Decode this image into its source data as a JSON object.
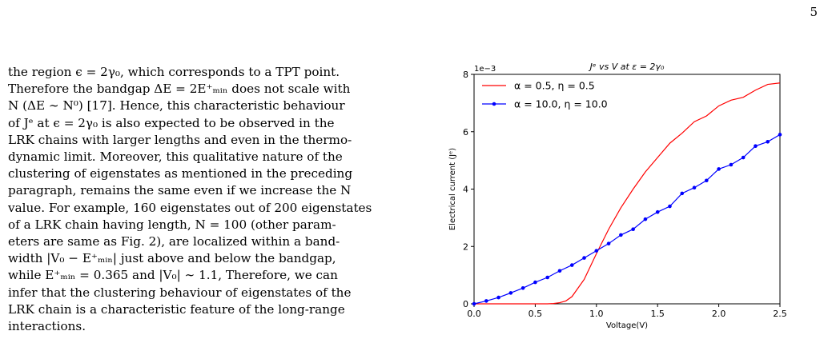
{
  "page_number": "5",
  "paragraph": [
    "the region ϵ = 2γ₀, which corresponds to a TPT point.",
    "Therefore the bandgap ΔE = 2E⁺ₘᵢₙ does not scale with",
    "N (ΔE ∼ N⁰) [17]. Hence, this characteristic behaviour",
    "of Jᵉ at ϵ = 2γ₀ is also expected to be observed in the",
    "LRK chains with larger lengths and even in the thermo-",
    "dynamic limit. Moreover, this qualitative nature of the",
    "clustering of eigenstates as mentioned in the preceding",
    "paragraph, remains the same even if we increase the N",
    "value. For example, 160 eigenstates out of 200 eigenstates",
    "of a LRK chain having length, N = 100 (other param-",
    "eters are same as Fig. 2), are localized within a band-",
    "width |V₀ − E⁺ₘᵢₙ| just above and below the bandgap,",
    "while E⁺ₘᵢₙ = 0.365 and |V₀| ∼ 1.1, Therefore, we can",
    "infer that the clustering behaviour of eigenstates of the",
    "LRK chain is a characteristic feature of the long-range",
    "interactions."
  ],
  "chart_data": {
    "type": "line",
    "title": "Jᵉ vs V at ε = 2γ₀",
    "xlabel": "Voltage(V)",
    "ylabel": "Electrical current (Jᵉ)",
    "y_scale_label": "1e−3",
    "xlim": [
      0,
      2.5
    ],
    "ylim": [
      0,
      8
    ],
    "xticks": [
      "0.0",
      "0.5",
      "1.0",
      "1.5",
      "2.0",
      "2.5"
    ],
    "yticks": [
      "0",
      "2",
      "4",
      "6",
      "8"
    ],
    "legend_position": "top-left",
    "series": [
      {
        "name": "α = 0.5, η = 0.5",
        "color": "#ff0000",
        "marker": "none",
        "x": [
          0,
          0.1,
          0.2,
          0.3,
          0.4,
          0.5,
          0.6,
          0.65,
          0.7,
          0.75,
          0.8,
          0.9,
          1.0,
          1.1,
          1.2,
          1.3,
          1.4,
          1.5,
          1.6,
          1.7,
          1.8,
          1.9,
          2.0,
          2.1,
          2.2,
          2.3,
          2.4,
          2.5
        ],
        "y": [
          0,
          0,
          0,
          0,
          0,
          0,
          0,
          0.01,
          0.04,
          0.1,
          0.25,
          0.85,
          1.75,
          2.6,
          3.35,
          4.0,
          4.6,
          5.1,
          5.6,
          5.95,
          6.35,
          6.55,
          6.9,
          7.1,
          7.2,
          7.45,
          7.65,
          7.7
        ]
      },
      {
        "name": "α = 10.0, η = 10.0",
        "color": "#0000ff",
        "marker": "dot",
        "x": [
          0,
          0.1,
          0.2,
          0.3,
          0.4,
          0.5,
          0.6,
          0.7,
          0.8,
          0.9,
          1.0,
          1.1,
          1.2,
          1.3,
          1.4,
          1.5,
          1.6,
          1.7,
          1.8,
          1.9,
          2.0,
          2.1,
          2.2,
          2.3,
          2.4,
          2.5
        ],
        "y": [
          0,
          0.1,
          0.22,
          0.38,
          0.55,
          0.75,
          0.92,
          1.15,
          1.35,
          1.6,
          1.85,
          2.1,
          2.4,
          2.6,
          2.95,
          3.2,
          3.4,
          3.85,
          4.05,
          4.3,
          4.7,
          4.85,
          5.1,
          5.5,
          5.65,
          5.9
        ]
      }
    ]
  }
}
